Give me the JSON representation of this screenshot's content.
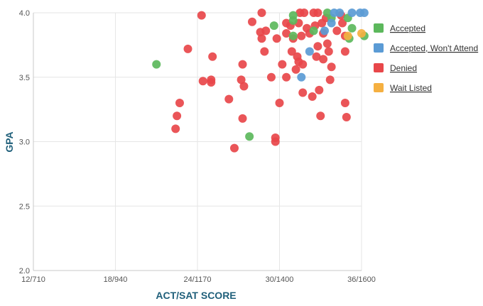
{
  "chart_data": {
    "type": "scatter",
    "xlabel": "ACT/SAT SCORE",
    "ylabel": "GPA",
    "x_ticks": [
      "12/710",
      "18/940",
      "24/1170",
      "30/1400",
      "36/1600"
    ],
    "x_tick_values": [
      12,
      18,
      24,
      30,
      36
    ],
    "xlim": [
      12,
      36
    ],
    "y_ticks": [
      "2.0",
      "2.5",
      "3.0",
      "3.5",
      "4.0"
    ],
    "y_tick_values": [
      2.0,
      2.5,
      3.0,
      3.5,
      4.0
    ],
    "ylim": [
      2.0,
      4.0
    ],
    "grid": true,
    "legend_position": "right",
    "series": [
      {
        "name": "Accepted",
        "color": "#5cb85c",
        "points": [
          [
            21,
            3.6
          ],
          [
            27.8,
            3.04
          ],
          [
            29.6,
            3.9
          ],
          [
            31,
            3.98
          ],
          [
            31,
            3.94
          ],
          [
            31,
            3.82
          ],
          [
            32.5,
            3.86
          ],
          [
            33.5,
            4.0
          ],
          [
            33.8,
            3.96
          ],
          [
            35.0,
            3.96
          ],
          [
            35.1,
            3.8
          ],
          [
            35.3,
            3.88
          ],
          [
            36.2,
            3.82
          ]
        ]
      },
      {
        "name": "Accepted, Won't Attend",
        "color": "#5b9bd5",
        "points": [
          [
            31.6,
            3.5
          ],
          [
            32.2,
            3.7
          ],
          [
            33.3,
            3.86
          ],
          [
            33.8,
            3.92
          ],
          [
            34.0,
            4.0
          ],
          [
            34.4,
            4.0
          ],
          [
            35.3,
            4.0
          ],
          [
            35.9,
            4.0
          ],
          [
            36.2,
            4.0
          ]
        ]
      },
      {
        "name": "Denied",
        "color": "#e8474a",
        "points": [
          [
            22.5,
            3.2
          ],
          [
            22.7,
            3.3
          ],
          [
            22.4,
            3.1
          ],
          [
            23.3,
            3.72
          ],
          [
            24.3,
            3.98
          ],
          [
            24.4,
            3.47
          ],
          [
            25.1,
            3.66
          ],
          [
            25.0,
            3.48
          ],
          [
            25.0,
            3.46
          ],
          [
            26.3,
            3.33
          ],
          [
            26.7,
            2.95
          ],
          [
            27.2,
            3.48
          ],
          [
            27.3,
            3.18
          ],
          [
            27.3,
            3.6
          ],
          [
            27.4,
            3.43
          ],
          [
            28.0,
            3.93
          ],
          [
            28.6,
            3.85
          ],
          [
            28.7,
            4.0
          ],
          [
            28.7,
            3.8
          ],
          [
            28.9,
            3.7
          ],
          [
            29.0,
            3.86
          ],
          [
            29.4,
            3.5
          ],
          [
            29.7,
            3.0
          ],
          [
            29.7,
            3.03
          ],
          [
            29.8,
            3.8
          ],
          [
            30.0,
            3.3
          ],
          [
            30.2,
            3.6
          ],
          [
            30.5,
            3.92
          ],
          [
            30.5,
            3.84
          ],
          [
            30.5,
            3.5
          ],
          [
            30.8,
            3.9
          ],
          [
            30.9,
            3.7
          ],
          [
            31.0,
            3.8
          ],
          [
            31.2,
            3.56
          ],
          [
            31.3,
            3.66
          ],
          [
            31.4,
            3.62
          ],
          [
            31.4,
            3.92
          ],
          [
            31.5,
            4.0
          ],
          [
            31.6,
            3.82
          ],
          [
            31.7,
            3.6
          ],
          [
            31.7,
            3.38
          ],
          [
            31.8,
            4.0
          ],
          [
            32.0,
            3.88
          ],
          [
            32.2,
            3.84
          ],
          [
            32.4,
            3.35
          ],
          [
            32.5,
            4.0
          ],
          [
            32.6,
            3.9
          ],
          [
            32.7,
            3.66
          ],
          [
            32.8,
            4.0
          ],
          [
            32.8,
            3.74
          ],
          [
            32.9,
            3.4
          ],
          [
            33.0,
            3.2
          ],
          [
            33.1,
            3.92
          ],
          [
            33.2,
            3.84
          ],
          [
            33.2,
            3.64
          ],
          [
            33.4,
            3.96
          ],
          [
            33.5,
            3.76
          ],
          [
            33.6,
            3.7
          ],
          [
            33.7,
            3.48
          ],
          [
            33.8,
            3.58
          ],
          [
            34.2,
            3.86
          ],
          [
            34.5,
            3.98
          ],
          [
            34.6,
            3.92
          ],
          [
            34.8,
            3.82
          ],
          [
            34.8,
            3.7
          ],
          [
            34.8,
            3.3
          ],
          [
            34.9,
            3.19
          ]
        ]
      },
      {
        "name": "Wait Listed",
        "color": "#f5b041",
        "points": [
          [
            35.0,
            3.82
          ],
          [
            36.0,
            3.84
          ]
        ]
      }
    ]
  }
}
